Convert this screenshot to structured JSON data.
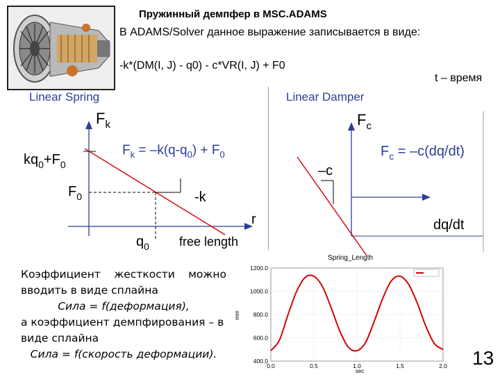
{
  "slide": {
    "title": "Пружинный демпфер в MSC.ADAMS",
    "subtitle": "В ADAMS/Solver данное выражение записывается в виде:",
    "formula": "-k*(DM(I, J) - q0) - c*VR(I, J) + F0",
    "time_note": "t – время",
    "page_number": "13"
  },
  "spring": {
    "title": "Linear Spring",
    "axis_y": "Fk",
    "axis_y_main": "F",
    "axis_y_sub": "k",
    "equation_main": "F",
    "equation_sub": "k",
    "equation_mid": " = –k(q-q",
    "equation_sub2": "0",
    "equation_end": ") + F",
    "equation_sub3": "0",
    "label_kq0": "kq",
    "label_kq0_sub": "0",
    "label_plus": "+F",
    "label_plus_sub": "0",
    "label_f0": "F",
    "label_f0_sub": "0",
    "slope_label": "-k",
    "axis_x": "r",
    "q0_main": "q",
    "q0_sub": "0",
    "free_length": "free length"
  },
  "damper": {
    "title": "Linear Damper",
    "axis_y_main": "F",
    "axis_y_sub": "c",
    "equation_main": "F",
    "equation_sub": "c",
    "equation_rest": " = –c(dq/dt)",
    "slope_label": "–c",
    "axis_x": "dq/dt"
  },
  "text_block": {
    "line1_words": [
      "Коэффициент",
      "жесткости",
      "можно"
    ],
    "line2": "вводить в виде сплайна",
    "line3": "Сила = f(деформация),",
    "line4": "а коэффициент демпфирования – в",
    "line5": "виде сплайна",
    "line6": "Сила = f(скорость деформации)."
  },
  "chart_data": {
    "type": "line",
    "title": "Spring_Length",
    "xlabel": "sec",
    "ylabel": "mm",
    "xlim": [
      0.0,
      2.0
    ],
    "ylim": [
      400.0,
      1200.0
    ],
    "x_ticks": [
      "0.0",
      "0.5",
      "1.0",
      "1.5",
      "2.0"
    ],
    "y_ticks": [
      "400.0",
      "600.0",
      "800.0",
      "1000.0",
      "1200.0"
    ],
    "grid": true,
    "legend": "top-right",
    "series": [
      {
        "color": "#d40000",
        "x": [
          0.0,
          0.1,
          0.2,
          0.3,
          0.4,
          0.5,
          0.6,
          0.7,
          0.8,
          0.9,
          1.0,
          1.1,
          1.2,
          1.3,
          1.4,
          1.5,
          1.6,
          1.7,
          1.8,
          1.9,
          2.0
        ],
        "y": [
          490,
          580,
          800,
          1000,
          1120,
          1130,
          1040,
          860,
          660,
          520,
          490,
          560,
          740,
          940,
          1090,
          1130,
          1060,
          900,
          700,
          550,
          500
        ]
      }
    ]
  }
}
